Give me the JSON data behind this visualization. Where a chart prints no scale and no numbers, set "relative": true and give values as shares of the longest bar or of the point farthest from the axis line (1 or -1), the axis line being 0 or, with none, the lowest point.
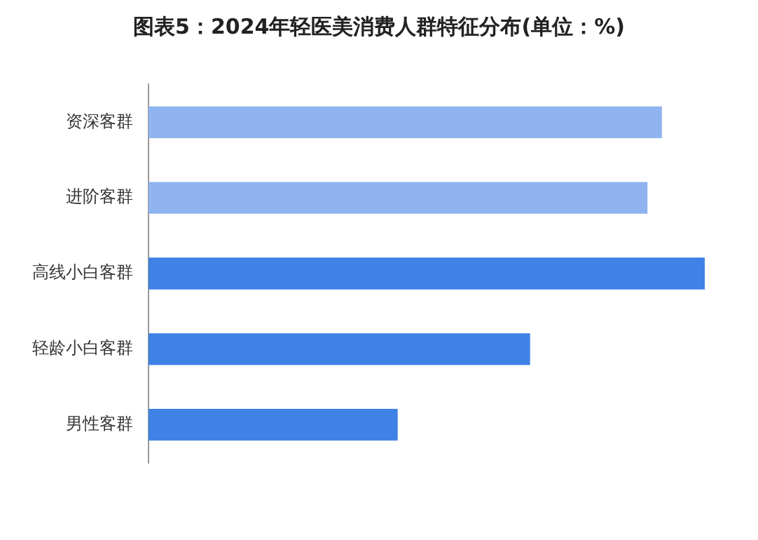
{
  "chart_data": {
    "type": "bar",
    "orientation": "horizontal",
    "relative": true,
    "title": "图表5：2024年轻医美消费人群特征分布(单位：%)",
    "categories": [
      "资深客群",
      "进阶客群",
      "高线小白客群",
      "轻龄小白客群",
      "男性客群"
    ],
    "values": [
      0.923,
      0.897,
      1,
      0.686,
      0.448
    ],
    "colors": [
      "#8fb4f0",
      "#8fb4f0",
      "#3f82e6",
      "#3f82e6",
      "#3f82e6"
    ],
    "legend": false
  }
}
